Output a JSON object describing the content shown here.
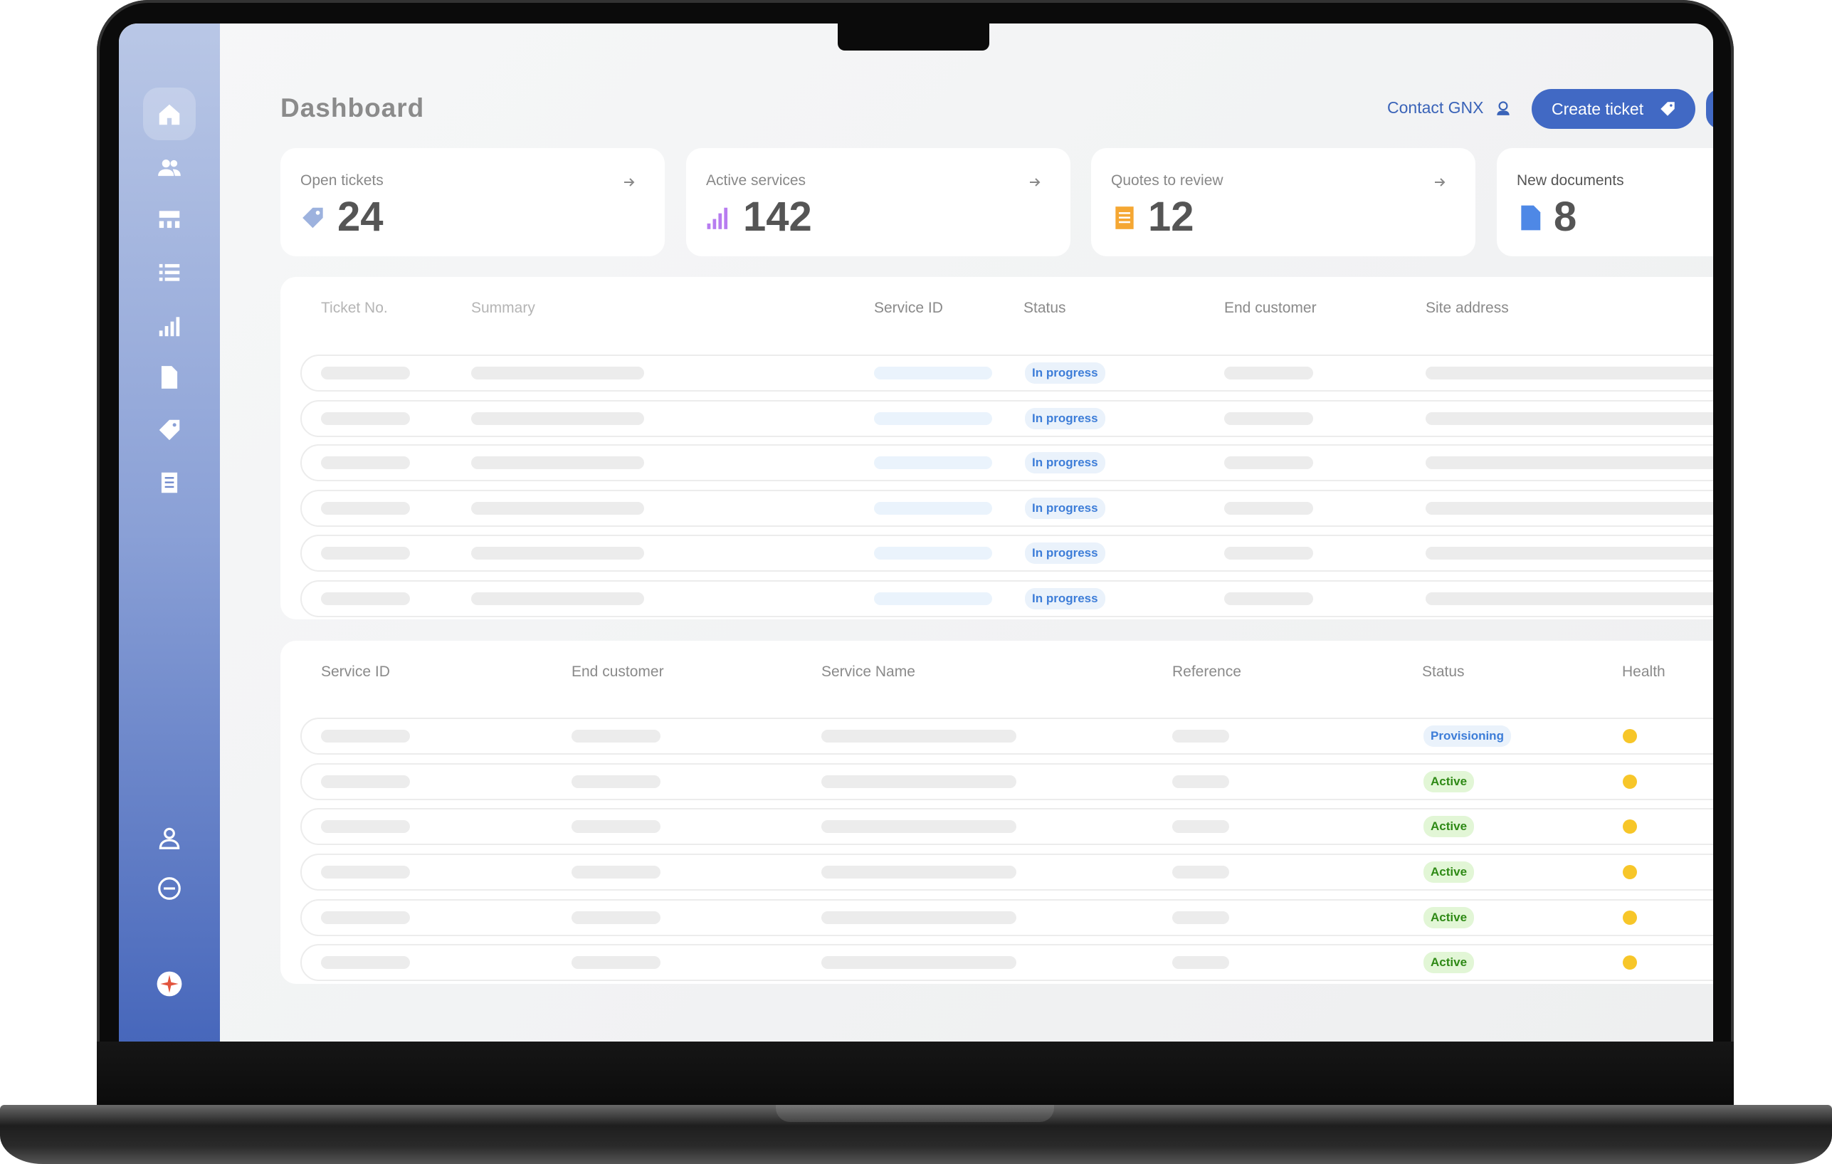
{
  "header": {
    "title": "Dashboard",
    "contact": "Contact GNX",
    "create_ticket": "Create ticket"
  },
  "cards": [
    {
      "label": "Open tickets",
      "value": 24
    },
    {
      "label": "Active services",
      "value": 142
    },
    {
      "label": "Quotes to review",
      "value": 12
    },
    {
      "label": "New documents",
      "value": 8
    }
  ],
  "tickets_table": {
    "columns": [
      "Ticket No.",
      "Summary",
      "Service ID",
      "Status",
      "End customer",
      "Site address"
    ],
    "rows": [
      {
        "status": "In progress"
      },
      {
        "status": "In progress"
      },
      {
        "status": "In progress"
      },
      {
        "status": "In progress"
      },
      {
        "status": "In progress"
      },
      {
        "status": "In progress"
      }
    ]
  },
  "services_table": {
    "columns": [
      "Service ID",
      "End customer",
      "Service Name",
      "Reference",
      "Status",
      "Health"
    ],
    "rows": [
      {
        "status": "Provisioning"
      },
      {
        "status": "Active"
      },
      {
        "status": "Active"
      },
      {
        "status": "Active"
      },
      {
        "status": "Active"
      },
      {
        "status": "Active"
      }
    ]
  }
}
